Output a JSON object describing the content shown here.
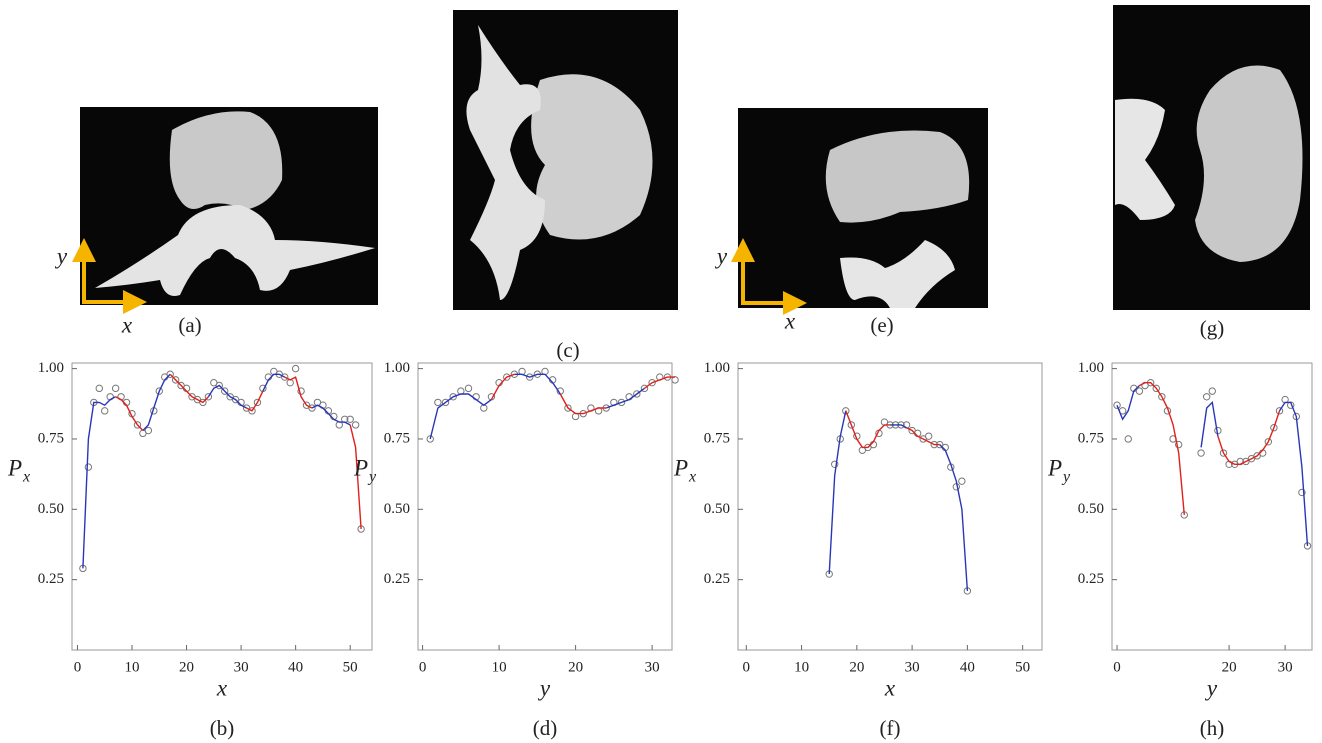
{
  "images": [
    {
      "caption": "(a)",
      "x_axis": "x",
      "y_axis": "y"
    },
    {
      "caption": "(c)"
    },
    {
      "caption": "(e)",
      "x_axis": "x",
      "y_axis": "y"
    },
    {
      "caption": "(g)"
    }
  ],
  "chart_data": [
    {
      "type": "line",
      "caption": "(b)",
      "xlabel": "x",
      "ylabel": "P",
      "ylabel_sub": "x",
      "xlim": [
        -1,
        54
      ],
      "xticks": [
        0,
        10,
        20,
        30,
        40,
        50
      ],
      "ylim": [
        0,
        1.02
      ],
      "yticks": [
        {
          "value": 1,
          "label": "1.00"
        },
        0.75,
        {
          "value": 0.5,
          "label": "0.50"
        },
        0.25
      ],
      "x": [
        1,
        2,
        3,
        4,
        5,
        6,
        7,
        8,
        9,
        10,
        11,
        12,
        13,
        14,
        15,
        16,
        17,
        18,
        19,
        20,
        21,
        22,
        23,
        24,
        25,
        26,
        27,
        28,
        29,
        30,
        31,
        32,
        33,
        34,
        35,
        36,
        37,
        38,
        39,
        40,
        41,
        42,
        43,
        44,
        45,
        46,
        47,
        48,
        49,
        50,
        51,
        52
      ],
      "series": [
        {
          "kind": "scatter",
          "color": "#777777",
          "values": [
            0.29,
            0.65,
            0.88,
            0.93,
            0.85,
            0.9,
            0.93,
            0.9,
            0.88,
            0.84,
            0.8,
            0.77,
            0.78,
            0.85,
            0.92,
            0.97,
            0.98,
            0.96,
            0.94,
            0.93,
            0.9,
            0.89,
            0.88,
            0.9,
            0.95,
            0.94,
            0.92,
            0.9,
            0.89,
            0.88,
            0.86,
            0.85,
            0.88,
            0.93,
            0.97,
            0.99,
            0.98,
            0.97,
            0.95,
            1.0,
            0.92,
            0.87,
            0.86,
            0.88,
            0.87,
            0.85,
            0.83,
            0.8,
            0.82,
            0.82,
            0.8,
            0.43
          ]
        },
        {
          "kind": "line",
          "color": "#2a36b8",
          "values": [
            0.29,
            0.75,
            0.88,
            0.88,
            0.87,
            0.89,
            0.9,
            null,
            null,
            null,
            null,
            0.78,
            0.8,
            0.86,
            0.92,
            0.96,
            0.98,
            null,
            null,
            null,
            null,
            null,
            null,
            0.9,
            0.93,
            0.94,
            0.92,
            0.9,
            0.89,
            0.87,
            0.86,
            null,
            null,
            0.92,
            0.96,
            0.98,
            0.98,
            0.97,
            null,
            null,
            null,
            null,
            0.86,
            0.87,
            0.86,
            0.84,
            0.82,
            0.81,
            0.81,
            0.8,
            null,
            null
          ]
        },
        {
          "kind": "line",
          "color": "#e0201c",
          "values": [
            null,
            null,
            null,
            null,
            null,
            null,
            0.9,
            0.89,
            0.87,
            0.83,
            0.8,
            0.78,
            null,
            null,
            null,
            null,
            0.98,
            0.96,
            0.94,
            0.92,
            0.9,
            0.89,
            0.88,
            0.9,
            null,
            null,
            null,
            null,
            null,
            null,
            0.86,
            0.85,
            0.88,
            0.92,
            null,
            null,
            null,
            0.97,
            0.96,
            0.97,
            0.9,
            0.87,
            0.86,
            null,
            null,
            null,
            null,
            null,
            null,
            0.8,
            0.72,
            0.43
          ]
        }
      ]
    },
    {
      "type": "line",
      "caption": "(d)",
      "xlabel": "y",
      "ylabel": "P",
      "ylabel_sub": "y",
      "xlim": [
        -0.6,
        32.6
      ],
      "xticks": [
        0,
        10,
        20,
        30
      ],
      "ylim": [
        0,
        1.02
      ],
      "yticks": [
        {
          "value": 1,
          "label": "1.00"
        },
        0.75,
        {
          "value": 0.5,
          "label": "0.50"
        },
        0.25
      ],
      "x": [
        1,
        2,
        3,
        4,
        5,
        6,
        7,
        8,
        9,
        10,
        11,
        12,
        13,
        14,
        15,
        16,
        17,
        18,
        19,
        20,
        21,
        22,
        23,
        24,
        25,
        26,
        27,
        28,
        29,
        30,
        31,
        32,
        33
      ],
      "series": [
        {
          "kind": "scatter",
          "color": "#777777",
          "values": [
            0.75,
            0.88,
            0.88,
            0.9,
            0.92,
            0.93,
            0.9,
            0.86,
            0.9,
            0.95,
            0.97,
            0.98,
            0.99,
            0.97,
            0.98,
            0.99,
            0.96,
            0.92,
            0.86,
            0.83,
            0.84,
            0.86,
            0.85,
            0.86,
            0.88,
            0.88,
            0.9,
            0.91,
            0.93,
            0.95,
            0.97,
            0.97,
            0.96
          ]
        },
        {
          "kind": "line",
          "color": "#2a36b8",
          "values": [
            0.75,
            0.86,
            0.88,
            0.9,
            0.91,
            0.91,
            0.89,
            0.87,
            0.89,
            null,
            null,
            0.98,
            0.98,
            0.97,
            0.98,
            0.98,
            0.95,
            0.91,
            null,
            null,
            null,
            null,
            null,
            0.86,
            0.87,
            0.88,
            0.89,
            0.91,
            0.93,
            null,
            null,
            null,
            null
          ]
        },
        {
          "kind": "line",
          "color": "#e0201c",
          "values": [
            null,
            null,
            null,
            null,
            null,
            null,
            null,
            null,
            0.89,
            0.94,
            0.97,
            0.98,
            null,
            null,
            null,
            null,
            null,
            0.91,
            0.86,
            0.84,
            0.84,
            0.85,
            0.86,
            0.86,
            null,
            null,
            null,
            null,
            0.93,
            0.95,
            0.96,
            0.97,
            0.97
          ]
        }
      ]
    },
    {
      "type": "line",
      "caption": "(f)",
      "xlabel": "x",
      "ylabel": "P",
      "ylabel_sub": "x",
      "xlim": [
        -1.5,
        53.5
      ],
      "xticks": [
        0,
        10,
        20,
        30,
        40,
        50
      ],
      "ylim": [
        0,
        1.02
      ],
      "yticks": [
        {
          "value": 1,
          "label": "1.00"
        },
        0.75,
        {
          "value": 0.5,
          "label": "0.50"
        },
        0.25
      ],
      "x": [
        15,
        16,
        17,
        18,
        19,
        20,
        21,
        22,
        23,
        24,
        25,
        26,
        27,
        28,
        29,
        30,
        31,
        32,
        33,
        34,
        35,
        36,
        37,
        38,
        39,
        40
      ],
      "series": [
        {
          "kind": "scatter",
          "color": "#777777",
          "values": [
            0.27,
            0.66,
            0.75,
            0.85,
            0.8,
            0.76,
            0.71,
            0.72,
            0.73,
            0.77,
            0.81,
            0.8,
            0.8,
            0.8,
            0.8,
            0.78,
            0.77,
            0.75,
            0.76,
            0.73,
            0.73,
            0.72,
            0.65,
            0.58,
            0.6,
            0.21
          ]
        },
        {
          "kind": "line",
          "color": "#2a36b8",
          "values": [
            0.27,
            0.62,
            0.76,
            0.85,
            null,
            null,
            null,
            null,
            null,
            null,
            null,
            0.8,
            0.8,
            0.8,
            0.79,
            null,
            null,
            null,
            null,
            null,
            0.73,
            0.71,
            0.66,
            0.6,
            0.5,
            0.21
          ]
        },
        {
          "kind": "line",
          "color": "#e0201c",
          "values": [
            null,
            null,
            null,
            0.85,
            0.8,
            0.75,
            0.72,
            0.72,
            0.74,
            0.78,
            0.8,
            0.8,
            null,
            null,
            0.79,
            0.78,
            0.76,
            0.75,
            0.74,
            0.73,
            0.73,
            null,
            null,
            null,
            null,
            null
          ]
        }
      ]
    },
    {
      "type": "line",
      "caption": "(h)",
      "xlabel": "y",
      "ylabel": "P",
      "ylabel_sub": "y",
      "xlim": [
        -0.9,
        34.8
      ],
      "xticks": [
        0,
        20,
        30
      ],
      "ylim": [
        0,
        1.02
      ],
      "yticks": [
        {
          "value": 1,
          "label": "1.00"
        },
        0.75,
        {
          "value": 0.5,
          "label": "0.50"
        },
        0.25
      ],
      "x": [
        0,
        1,
        2,
        3,
        4,
        5,
        6,
        7,
        8,
        9,
        10,
        11,
        12,
        13,
        14,
        15,
        16,
        17,
        18,
        19,
        20,
        21,
        22,
        23,
        24,
        25,
        26,
        27,
        28,
        29,
        30,
        31,
        32,
        33,
        34
      ],
      "series": [
        {
          "kind": "scatter",
          "color": "#777777",
          "values": [
            0.87,
            0.85,
            0.75,
            0.93,
            0.92,
            0.94,
            0.95,
            0.93,
            0.9,
            0.85,
            0.75,
            0.73,
            0.48,
            null,
            null,
            0.7,
            0.9,
            0.92,
            0.78,
            0.7,
            0.66,
            0.66,
            0.67,
            0.67,
            0.68,
            0.69,
            0.7,
            0.74,
            0.79,
            0.85,
            0.89,
            0.87,
            0.83,
            0.56,
            0.37
          ]
        },
        {
          "kind": "line",
          "color": "#2a36b8",
          "values": [
            0.87,
            0.82,
            0.85,
            0.92,
            0.94,
            null,
            null,
            null,
            null,
            null,
            null,
            null,
            null,
            null,
            null,
            0.72,
            0.86,
            0.88,
            0.76,
            null,
            null,
            null,
            null,
            null,
            null,
            null,
            null,
            null,
            null,
            0.85,
            0.88,
            0.88,
            0.83,
            0.65,
            0.37
          ]
        },
        {
          "kind": "line",
          "color": "#e0201c",
          "values": [
            null,
            null,
            null,
            null,
            0.94,
            0.95,
            0.95,
            0.93,
            0.9,
            0.86,
            0.8,
            0.7,
            0.48,
            null,
            null,
            null,
            null,
            null,
            0.76,
            0.7,
            0.67,
            0.66,
            0.66,
            0.67,
            0.68,
            0.69,
            0.71,
            0.74,
            0.79,
            0.85,
            null,
            null,
            null,
            null,
            null
          ]
        }
      ]
    }
  ]
}
